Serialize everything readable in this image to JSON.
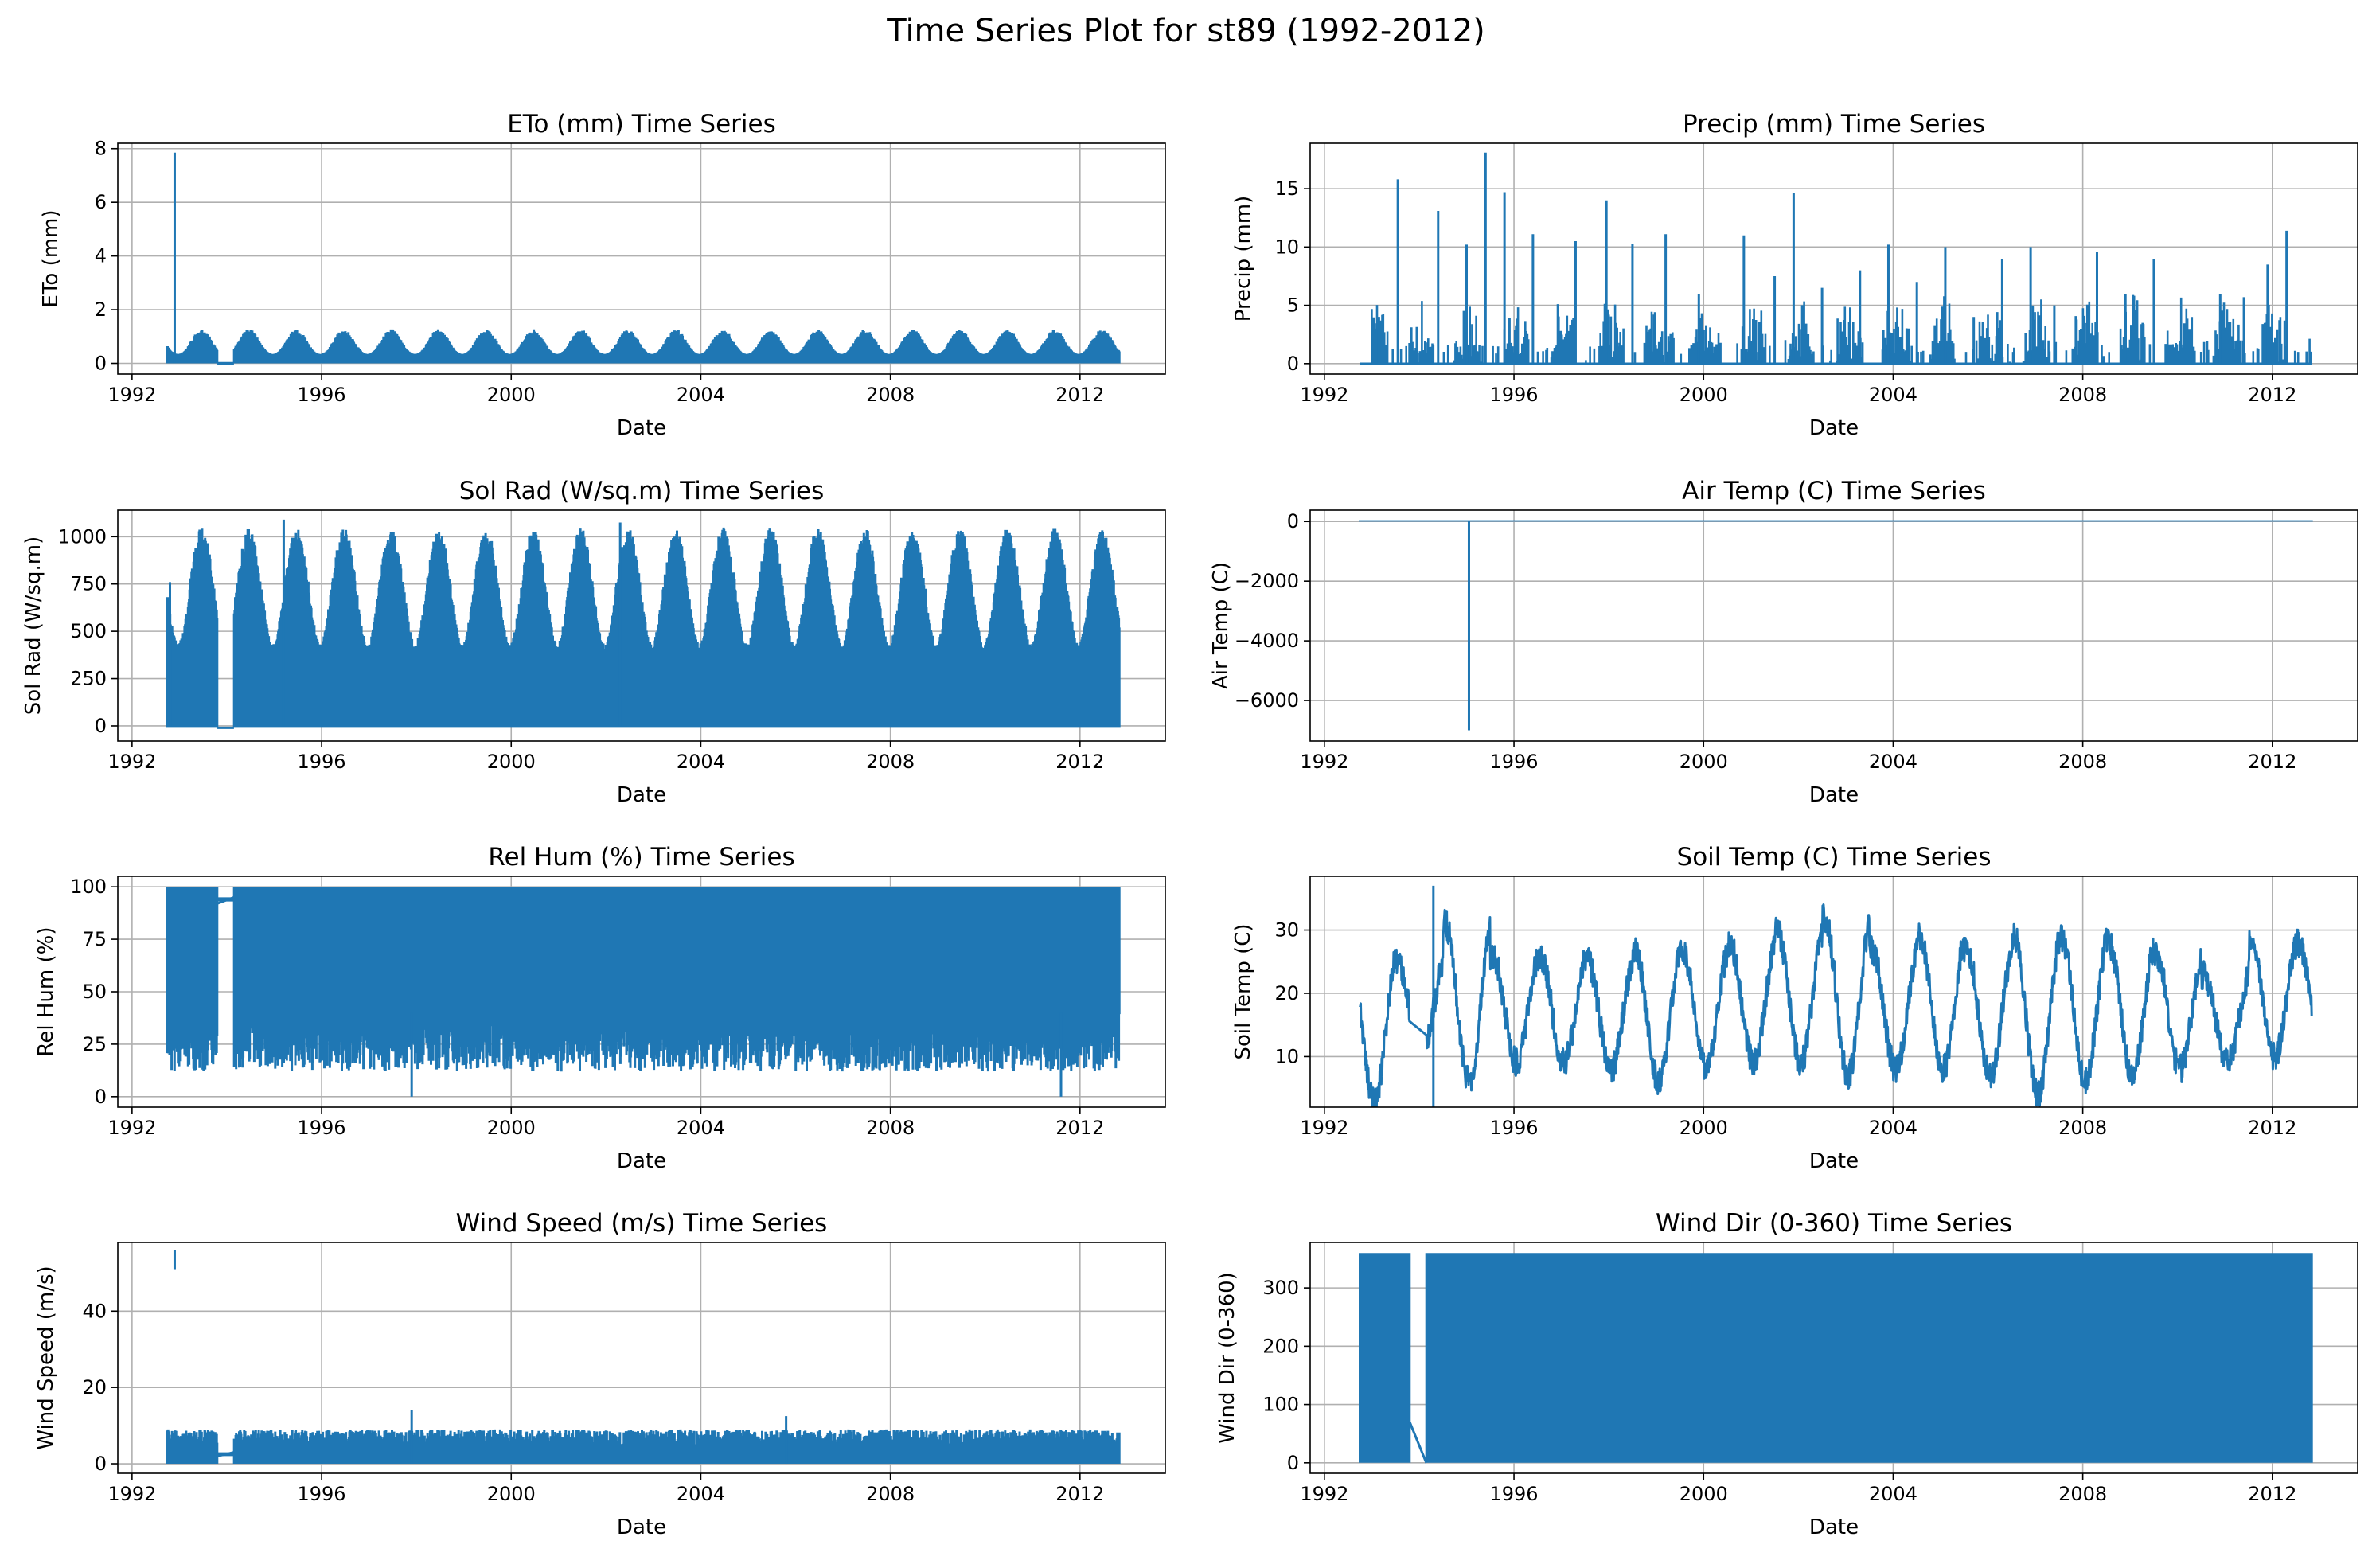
{
  "figure": {
    "title": "Time Series Plot for st89 (1992-2012)"
  },
  "colors": {
    "series": "#1f77b4",
    "grid": "#b0b0b0",
    "axes": "#000000"
  },
  "chart_data": [
    {
      "type": "line",
      "title": "ETo (mm) Time Series",
      "xlabel": "Date",
      "ylabel": "ETo (mm)",
      "xlim": [
        1991.7,
        2013.8
      ],
      "ylim": [
        -0.4,
        8.2
      ],
      "x_ticks": [
        "1992",
        "1996",
        "2000",
        "2004",
        "2008",
        "2012"
      ],
      "y_ticks": [
        "0",
        "2",
        "4",
        "6",
        "8"
      ],
      "grid": true,
      "data_start": 1992.75,
      "data_end": 2012.83,
      "base": 0.0,
      "season_amp": 0.8,
      "gap": [
        1993.8,
        1994.15
      ],
      "spikes": [
        {
          "x": 1992.9,
          "y": 7.85
        }
      ]
    },
    {
      "type": "line",
      "title": "Precip (mm) Time Series",
      "xlabel": "Date",
      "ylabel": "Precip (mm)",
      "xlim": [
        1991.7,
        2013.8
      ],
      "ylim": [
        -0.9,
        18.9
      ],
      "x_ticks": [
        "1992",
        "1996",
        "2000",
        "2004",
        "2008",
        "2012"
      ],
      "y_ticks": [
        "0",
        "5",
        "10",
        "15"
      ],
      "grid": true,
      "data_start": 1992.75,
      "data_end": 2012.83,
      "spikes": [
        {
          "x": 1993.1,
          "y": 3.0
        },
        {
          "x": 1993.55,
          "y": 15.8
        },
        {
          "x": 1994.4,
          "y": 13.1
        },
        {
          "x": 1995.0,
          "y": 10.2
        },
        {
          "x": 1995.4,
          "y": 18.1
        },
        {
          "x": 1995.8,
          "y": 14.7
        },
        {
          "x": 1996.4,
          "y": 11.1
        },
        {
          "x": 1997.3,
          "y": 10.5
        },
        {
          "x": 1997.95,
          "y": 14.0
        },
        {
          "x": 1998.5,
          "y": 10.3
        },
        {
          "x": 1999.2,
          "y": 11.1
        },
        {
          "x": 1999.9,
          "y": 6.0
        },
        {
          "x": 2000.85,
          "y": 11.0
        },
        {
          "x": 2001.5,
          "y": 7.5
        },
        {
          "x": 2001.9,
          "y": 14.6
        },
        {
          "x": 2002.5,
          "y": 6.5
        },
        {
          "x": 2003.3,
          "y": 8.0
        },
        {
          "x": 2003.9,
          "y": 10.2
        },
        {
          "x": 2004.5,
          "y": 7.0
        },
        {
          "x": 2005.1,
          "y": 10.0
        },
        {
          "x": 2005.7,
          "y": 4.0
        },
        {
          "x": 2006.3,
          "y": 9.0
        },
        {
          "x": 2006.9,
          "y": 10.0
        },
        {
          "x": 2007.4,
          "y": 5.0
        },
        {
          "x": 2008.3,
          "y": 9.6
        },
        {
          "x": 2008.9,
          "y": 6.0
        },
        {
          "x": 2009.5,
          "y": 9.0
        },
        {
          "x": 2010.3,
          "y": 4.0
        },
        {
          "x": 2010.9,
          "y": 6.0
        },
        {
          "x": 2011.4,
          "y": 5.7
        },
        {
          "x": 2011.9,
          "y": 8.5
        },
        {
          "x": 2012.3,
          "y": 11.4
        }
      ]
    },
    {
      "type": "line",
      "title": "Sol Rad (W/sq.m) Time Series",
      "xlabel": "Date",
      "ylabel": "Sol Rad (W/sq.m)",
      "xlim": [
        1991.7,
        2013.8
      ],
      "ylim": [
        -80,
        1140
      ],
      "x_ticks": [
        "1992",
        "1996",
        "2000",
        "2004",
        "2008",
        "2012"
      ],
      "y_ticks": [
        "0",
        "250",
        "500",
        "750",
        "1000"
      ],
      "grid": true,
      "data_start": 1992.75,
      "data_end": 2012.83,
      "base": -10,
      "summer_peak": 1050,
      "winter_peak": 430,
      "gap": [
        1993.8,
        1994.15
      ],
      "spikes": [
        {
          "x": 1992.8,
          "y": 760
        },
        {
          "x": 1995.2,
          "y": 1090
        },
        {
          "x": 2002.3,
          "y": 1075
        }
      ]
    },
    {
      "type": "line",
      "title": "Air Temp (C) Time Series",
      "xlabel": "Date",
      "ylabel": "Air Temp (C)",
      "xlim": [
        1991.7,
        2013.8
      ],
      "ylim": [
        -7360,
        380
      ],
      "x_ticks": [
        "1992",
        "1996",
        "2000",
        "2004",
        "2008",
        "2012"
      ],
      "y_ticks": [
        "0",
        "−2000",
        "−4000",
        "−6000"
      ],
      "grid": true,
      "data_start": 1992.75,
      "data_end": 2012.83,
      "level": 20,
      "spikes": [
        {
          "x": 1995.05,
          "y": -7000
        }
      ]
    },
    {
      "type": "line",
      "title": "Rel Hum (%) Time Series",
      "xlabel": "Date",
      "ylabel": "Rel Hum (%)",
      "xlim": [
        1991.7,
        2013.8
      ],
      "ylim": [
        -5,
        105
      ],
      "x_ticks": [
        "1992",
        "1996",
        "2000",
        "2004",
        "2008",
        "2012"
      ],
      "y_ticks": [
        "0",
        "25",
        "50",
        "75",
        "100"
      ],
      "grid": true,
      "data_start": 1992.75,
      "data_end": 2012.83,
      "top": 100,
      "low_typical": 20,
      "gap": [
        1993.8,
        1994.15
      ],
      "spikes": [
        {
          "x": 1997.9,
          "y": 0
        },
        {
          "x": 2011.6,
          "y": 0
        }
      ]
    },
    {
      "type": "line",
      "title": "Soil Temp (C) Time Series",
      "xlabel": "Date",
      "ylabel": "Soil Temp (C)",
      "xlim": [
        1991.7,
        2013.8
      ],
      "ylim": [
        2,
        38.5
      ],
      "x_ticks": [
        "1992",
        "1996",
        "2000",
        "2004",
        "2008",
        "2012"
      ],
      "y_ticks": [
        "10",
        "20",
        "30"
      ],
      "grid": true,
      "data_start": 1992.75,
      "data_end": 2012.83,
      "annual": [
        {
          "year": 1993,
          "max": 26,
          "min": 3
        },
        {
          "year": 1994,
          "max": 25,
          "min": 10
        },
        {
          "year": 1995,
          "max": 31,
          "min": 6
        },
        {
          "year": 1996,
          "max": 26,
          "min": 9
        },
        {
          "year": 1997,
          "max": 26,
          "min": 9
        },
        {
          "year": 1998,
          "max": 25,
          "min": 8
        },
        {
          "year": 1999,
          "max": 27,
          "min": 6
        },
        {
          "year": 2000,
          "max": 27,
          "min": 8
        },
        {
          "year": 2001,
          "max": 28,
          "min": 9
        },
        {
          "year": 2002,
          "max": 30,
          "min": 9
        },
        {
          "year": 2003,
          "max": 32,
          "min": 7
        },
        {
          "year": 2004,
          "max": 27,
          "min": 8
        },
        {
          "year": 2005,
          "max": 29,
          "min": 8
        },
        {
          "year": 2006,
          "max": 27,
          "min": 7
        },
        {
          "year": 2007,
          "max": 29,
          "min": 4
        },
        {
          "year": 2008,
          "max": 29,
          "min": 6
        },
        {
          "year": 2009,
          "max": 28,
          "min": 7
        },
        {
          "year": 2010,
          "max": 26,
          "min": 8
        },
        {
          "year": 2011,
          "max": 23,
          "min": 9
        },
        {
          "year": 2012,
          "max": 28,
          "min": 10
        }
      ],
      "gap": [
        1993.8,
        1994.15
      ],
      "spikes": [
        {
          "x": 1994.3,
          "y": 37
        }
      ]
    },
    {
      "type": "line",
      "title": "Wind Speed (m/s) Time Series",
      "xlabel": "Date",
      "ylabel": "Wind Speed (m/s)",
      "xlim": [
        1991.7,
        2013.8
      ],
      "ylim": [
        -2.5,
        58
      ],
      "x_ticks": [
        "1992",
        "1996",
        "2000",
        "2004",
        "2008",
        "2012"
      ],
      "y_ticks": [
        "0",
        "20",
        "40"
      ],
      "grid": true,
      "data_start": 1992.75,
      "data_end": 2012.83,
      "typical_max": 9,
      "gap": [
        1993.8,
        1994.15
      ],
      "spikes": [
        {
          "x": 1992.9,
          "y": 56
        },
        {
          "x": 1997.9,
          "y": 14
        },
        {
          "x": 2005.8,
          "y": 12.5
        }
      ]
    },
    {
      "type": "line",
      "title": "Wind Dir (0-360) Time Series",
      "xlabel": "Date",
      "ylabel": "Wind Dir (0-360)",
      "xlim": [
        1991.7,
        2013.8
      ],
      "ylim": [
        -18,
        378
      ],
      "x_ticks": [
        "1992",
        "1996",
        "2000",
        "2004",
        "2008",
        "2012"
      ],
      "y_ticks": [
        "0",
        "100",
        "200",
        "300"
      ],
      "grid": true,
      "data_start": 1992.75,
      "data_end": 2012.83,
      "top": 360,
      "gap": [
        1993.8,
        1994.15
      ]
    }
  ]
}
